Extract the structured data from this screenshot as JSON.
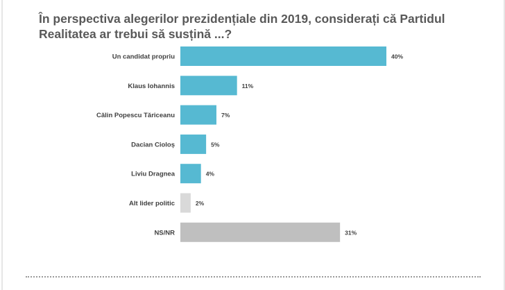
{
  "chart_data": {
    "type": "bar",
    "orientation": "horizontal",
    "title": "În perspectiva alegerilor prezidențiale din 2019, considerați că Partidul Realitatea ar trebui să susțină ...?",
    "categories": [
      "Un candidat propriu",
      "Klaus Iohannis",
      "Călin Popescu Tăriceanu",
      "Dacian Cioloș",
      "Liviu Dragnea",
      "Alt lider politic",
      "NS/NR"
    ],
    "values": [
      40,
      11,
      7,
      5,
      4,
      2,
      31
    ],
    "value_labels": [
      "40%",
      "11%",
      "7%",
      "5%",
      "4%",
      "2%",
      "31%"
    ],
    "colors": [
      "#56b9d2",
      "#56b9d2",
      "#56b9d2",
      "#56b9d2",
      "#56b9d2",
      "#d9d9d9",
      "#bfbfbf"
    ],
    "xlim": [
      0,
      40
    ],
    "grid": false,
    "unit": "%"
  }
}
